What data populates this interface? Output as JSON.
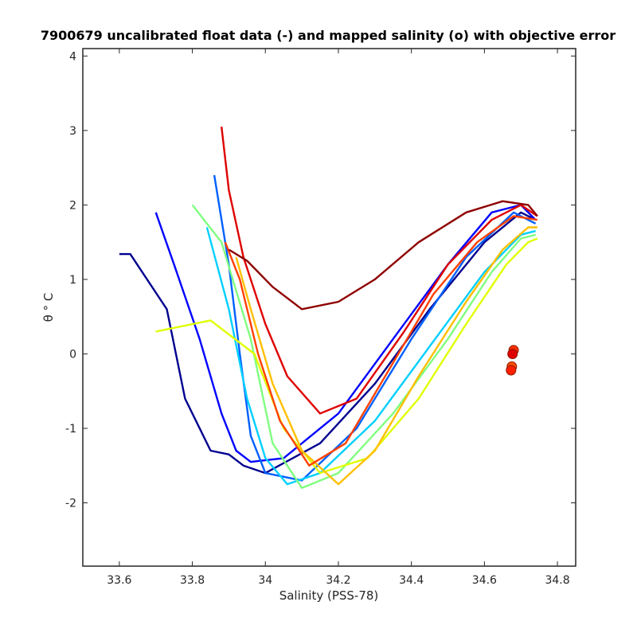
{
  "chart_data": {
    "type": "line",
    "title": "7900679 uncalibrated float data (-) and mapped salinity (o) with objective error",
    "xlabel": "Salinity (PSS-78)",
    "ylabel": "θ ° C",
    "xlim": [
      33.5,
      34.85
    ],
    "ylim": [
      -2.85,
      4.1
    ],
    "x_ticks": [
      "33.6",
      "33.8",
      "34",
      "34.2",
      "34.4",
      "34.6",
      "34.8"
    ],
    "y_ticks": [
      "-2",
      "-1",
      "0",
      "1",
      "2",
      "3",
      "4"
    ],
    "grid": false,
    "legend": "none",
    "colormap": "jet (profile number: early = blue, late = red)",
    "series": [
      {
        "color": "#00008f",
        "x": [
          33.6,
          33.63,
          33.73,
          33.78,
          33.85,
          33.9,
          33.94,
          34.0,
          34.15,
          34.3,
          34.45,
          34.6,
          34.7,
          34.74
        ],
        "y": [
          1.34,
          1.34,
          0.6,
          -0.6,
          -1.3,
          -1.35,
          -1.5,
          -1.6,
          -1.2,
          -0.4,
          0.6,
          1.5,
          1.9,
          1.8
        ]
      },
      {
        "color": "#0000ff",
        "x": [
          33.7,
          33.75,
          33.82,
          33.88,
          33.92,
          33.96,
          34.05,
          34.2,
          34.35,
          34.5,
          34.62,
          34.7,
          34.74
        ],
        "y": [
          1.9,
          1.2,
          0.2,
          -0.8,
          -1.3,
          -1.45,
          -1.4,
          -0.8,
          0.2,
          1.2,
          1.9,
          2.0,
          1.8
        ]
      },
      {
        "color": "#0060ff",
        "x": [
          33.86,
          33.9,
          33.93,
          33.96,
          34.0,
          34.1,
          34.25,
          34.4,
          34.55,
          34.68,
          34.74
        ],
        "y": [
          2.4,
          1.2,
          0.0,
          -1.1,
          -1.6,
          -1.7,
          -1.0,
          0.2,
          1.3,
          1.9,
          1.75
        ]
      },
      {
        "color": "#00cfff",
        "x": [
          33.84,
          33.9,
          33.95,
          34.0,
          34.06,
          34.15,
          34.3,
          34.45,
          34.6,
          34.7,
          34.74
        ],
        "y": [
          1.7,
          0.6,
          -0.6,
          -1.4,
          -1.75,
          -1.6,
          -0.9,
          0.1,
          1.1,
          1.6,
          1.65
        ]
      },
      {
        "color": "#80ff80",
        "x": [
          33.8,
          33.88,
          33.96,
          34.02,
          34.1,
          34.2,
          34.35,
          34.5,
          34.62,
          34.7,
          34.74
        ],
        "y": [
          2.0,
          1.5,
          0.2,
          -1.2,
          -1.8,
          -1.6,
          -0.8,
          0.2,
          1.1,
          1.55,
          1.6
        ]
      },
      {
        "color": "#e0ff00",
        "x": [
          33.7,
          33.85,
          33.97,
          34.05,
          34.15,
          34.28,
          34.42,
          34.55,
          34.66,
          34.72,
          34.745
        ],
        "y": [
          0.3,
          0.45,
          0.0,
          -1.0,
          -1.6,
          -1.4,
          -0.6,
          0.4,
          1.2,
          1.5,
          1.55
        ]
      },
      {
        "color": "#ffbf00",
        "x": [
          33.92,
          33.96,
          34.02,
          34.1,
          34.2,
          34.3,
          34.42,
          34.55,
          34.65,
          34.72,
          34.745
        ],
        "y": [
          1.3,
          0.6,
          -0.4,
          -1.3,
          -1.75,
          -1.3,
          -0.3,
          0.7,
          1.4,
          1.7,
          1.7
        ]
      },
      {
        "color": "#ff4000",
        "x": [
          33.89,
          33.93,
          33.98,
          34.04,
          34.12,
          34.22,
          34.34,
          34.46,
          34.58,
          34.68,
          34.745
        ],
        "y": [
          1.5,
          1.0,
          0.0,
          -0.9,
          -1.5,
          -1.2,
          -0.2,
          0.8,
          1.5,
          1.85,
          1.8
        ]
      },
      {
        "color": "#df0000",
        "x": [
          33.88,
          33.9,
          33.94,
          34.0,
          34.06,
          34.15,
          34.25,
          34.38,
          34.5,
          34.62,
          34.7,
          34.745
        ],
        "y": [
          3.05,
          2.2,
          1.3,
          0.4,
          -0.3,
          -0.8,
          -0.6,
          0.3,
          1.2,
          1.8,
          2.0,
          1.85
        ]
      },
      {
        "color": "#8f0000",
        "x": [
          33.9,
          33.95,
          34.02,
          34.1,
          34.2,
          34.3,
          34.42,
          34.55,
          34.65,
          34.72,
          34.745
        ],
        "y": [
          1.4,
          1.25,
          0.9,
          0.6,
          0.7,
          1.0,
          1.5,
          1.9,
          2.05,
          2.0,
          1.85
        ]
      }
    ],
    "mapped_salinity_markers": {
      "marker": "o",
      "points": [
        {
          "x": 34.68,
          "y": 0.05,
          "color": "#ff3000"
        },
        {
          "x": 34.677,
          "y": 0.0,
          "color": "#df0000"
        },
        {
          "x": 34.675,
          "y": -0.17,
          "color": "#ff5000"
        },
        {
          "x": 34.673,
          "y": -0.22,
          "color": "#ff2000"
        }
      ]
    }
  }
}
